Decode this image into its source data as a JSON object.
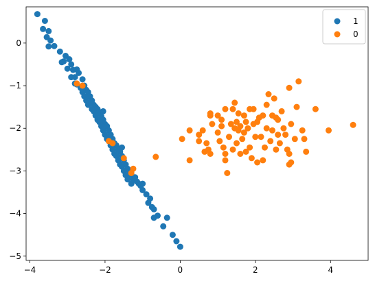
{
  "chart_data": {
    "type": "scatter",
    "title": "",
    "xlabel": "",
    "ylabel": "",
    "xlim": [
      -4.1,
      5.0
    ],
    "ylim": [
      -5.1,
      0.85
    ],
    "xticks": [
      -4,
      -2,
      0,
      2,
      4
    ],
    "yticks": [
      -5,
      -4,
      -3,
      -2,
      -1,
      0
    ],
    "grid": false,
    "legend": {
      "placement": "top-right",
      "entries": [
        "1",
        "0"
      ]
    },
    "series": [
      {
        "name": "1",
        "color": "#1f77b4",
        "points": [
          [
            -3.8,
            0.68
          ],
          [
            -3.6,
            0.52
          ],
          [
            -3.65,
            0.33
          ],
          [
            -3.5,
            0.28
          ],
          [
            -3.55,
            0.14
          ],
          [
            -3.45,
            0.06
          ],
          [
            -3.5,
            -0.08
          ],
          [
            -3.35,
            -0.07
          ],
          [
            -3.2,
            -0.2
          ],
          [
            -3.05,
            -0.3
          ],
          [
            -3.1,
            -0.43
          ],
          [
            -2.95,
            -0.38
          ],
          [
            -3.15,
            -0.45
          ],
          [
            -2.9,
            -0.5
          ],
          [
            -3.0,
            -0.6
          ],
          [
            -2.85,
            -0.63
          ],
          [
            -2.75,
            -0.62
          ],
          [
            -2.7,
            -0.7
          ],
          [
            -2.9,
            -0.8
          ],
          [
            -2.8,
            -0.8
          ],
          [
            -2.6,
            -0.85
          ],
          [
            -2.75,
            -0.97
          ],
          [
            -2.55,
            -1.0
          ],
          [
            -2.65,
            -1.05
          ],
          [
            -2.5,
            -1.1
          ],
          [
            -2.6,
            -1.15
          ],
          [
            -2.45,
            -1.15
          ],
          [
            -2.55,
            -1.25
          ],
          [
            -2.4,
            -1.25
          ],
          [
            -2.5,
            -1.35
          ],
          [
            -2.35,
            -1.35
          ],
          [
            -2.45,
            -1.45
          ],
          [
            -2.3,
            -1.45
          ],
          [
            -2.25,
            -1.5
          ],
          [
            -2.35,
            -1.55
          ],
          [
            -2.2,
            -1.55
          ],
          [
            -2.3,
            -1.6
          ],
          [
            -2.15,
            -1.62
          ],
          [
            -2.25,
            -1.7
          ],
          [
            -2.1,
            -1.72
          ],
          [
            -2.2,
            -1.8
          ],
          [
            -2.05,
            -1.8
          ],
          [
            -2.15,
            -1.85
          ],
          [
            -2.0,
            -1.9
          ],
          [
            -2.1,
            -1.95
          ],
          [
            -1.95,
            -1.95
          ],
          [
            -2.05,
            -2.05
          ],
          [
            -1.9,
            -2.05
          ],
          [
            -2.0,
            -2.15
          ],
          [
            -1.85,
            -2.15
          ],
          [
            -1.95,
            -2.25
          ],
          [
            -1.8,
            -2.25
          ],
          [
            -1.9,
            -2.3
          ],
          [
            -1.75,
            -2.35
          ],
          [
            -1.85,
            -2.4
          ],
          [
            -1.7,
            -2.4
          ],
          [
            -1.8,
            -2.5
          ],
          [
            -1.65,
            -2.5
          ],
          [
            -1.75,
            -2.6
          ],
          [
            -1.6,
            -2.55
          ],
          [
            -1.7,
            -2.65
          ],
          [
            -1.55,
            -2.65
          ],
          [
            -1.65,
            -2.75
          ],
          [
            -1.5,
            -2.75
          ],
          [
            -1.6,
            -2.85
          ],
          [
            -1.45,
            -2.85
          ],
          [
            -1.55,
            -2.9
          ],
          [
            -1.4,
            -2.95
          ],
          [
            -1.5,
            -3.0
          ],
          [
            -1.35,
            -3.05
          ],
          [
            -1.45,
            -3.1
          ],
          [
            -1.3,
            -3.1
          ],
          [
            -1.4,
            -3.2
          ],
          [
            -1.25,
            -3.2
          ],
          [
            -1.3,
            -3.3
          ],
          [
            -1.15,
            -3.25
          ],
          [
            -1.2,
            -3.15
          ],
          [
            -1.1,
            -3.3
          ],
          [
            -1.05,
            -3.35
          ],
          [
            -1.0,
            -3.45
          ],
          [
            -0.9,
            -3.55
          ],
          [
            -0.8,
            -3.65
          ],
          [
            -0.85,
            -3.75
          ],
          [
            -0.75,
            -3.85
          ],
          [
            -0.7,
            -3.9
          ],
          [
            -0.6,
            -4.05
          ],
          [
            -0.7,
            -4.1
          ],
          [
            -0.35,
            -4.1
          ],
          [
            -0.45,
            -4.3
          ],
          [
            -0.2,
            -4.5
          ],
          [
            -0.1,
            -4.65
          ],
          [
            0.0,
            -4.78
          ],
          [
            -2.8,
            -0.95
          ],
          [
            -2.05,
            -1.6
          ],
          [
            -1.55,
            -2.45
          ],
          [
            -1.9,
            -2.2
          ],
          [
            -2.4,
            -1.4
          ],
          [
            -1.0,
            -3.3
          ]
        ]
      },
      {
        "name": "0",
        "color": "#ff7f0e",
        "points": [
          [
            -2.75,
            -0.95
          ],
          [
            -2.6,
            -1.0
          ],
          [
            -1.9,
            -2.3
          ],
          [
            -1.8,
            -2.35
          ],
          [
            -1.5,
            -2.7
          ],
          [
            -1.3,
            -3.05
          ],
          [
            -1.25,
            -2.95
          ],
          [
            -0.65,
            -2.67
          ],
          [
            0.05,
            -2.25
          ],
          [
            0.25,
            -2.75
          ],
          [
            0.25,
            -2.05
          ],
          [
            0.5,
            -2.3
          ],
          [
            0.5,
            -2.15
          ],
          [
            0.6,
            -2.05
          ],
          [
            0.65,
            -2.55
          ],
          [
            0.7,
            -2.35
          ],
          [
            0.75,
            -2.5
          ],
          [
            0.8,
            -1.65
          ],
          [
            0.8,
            -1.7
          ],
          [
            0.8,
            -2.6
          ],
          [
            0.85,
            -1.9
          ],
          [
            1.0,
            -2.1
          ],
          [
            1.0,
            -1.7
          ],
          [
            1.05,
            -2.3
          ],
          [
            1.1,
            -1.95
          ],
          [
            1.15,
            -2.45
          ],
          [
            1.2,
            -2.6
          ],
          [
            1.2,
            -1.55
          ],
          [
            1.2,
            -2.75
          ],
          [
            1.25,
            -3.05
          ],
          [
            1.3,
            -2.2
          ],
          [
            1.35,
            -1.9
          ],
          [
            1.4,
            -2.5
          ],
          [
            1.4,
            -1.55
          ],
          [
            1.45,
            -1.4
          ],
          [
            1.45,
            -2.0
          ],
          [
            1.5,
            -1.85
          ],
          [
            1.5,
            -2.35
          ],
          [
            1.55,
            -1.65
          ],
          [
            1.6,
            -2.6
          ],
          [
            1.6,
            -1.95
          ],
          [
            1.65,
            -2.25
          ],
          [
            1.7,
            -1.7
          ],
          [
            1.7,
            -2.1
          ],
          [
            1.75,
            -2.55
          ],
          [
            1.75,
            -1.85
          ],
          [
            1.8,
            -2.0
          ],
          [
            1.85,
            -1.55
          ],
          [
            1.85,
            -2.45
          ],
          [
            1.9,
            -2.7
          ],
          [
            1.95,
            -1.55
          ],
          [
            1.95,
            -1.9
          ],
          [
            2.0,
            -2.2
          ],
          [
            2.05,
            -1.85
          ],
          [
            2.05,
            -2.8
          ],
          [
            2.1,
            -1.75
          ],
          [
            2.15,
            -2.2
          ],
          [
            2.2,
            -1.7
          ],
          [
            2.25,
            -2.45
          ],
          [
            2.3,
            -2.0
          ],
          [
            2.3,
            -1.45
          ],
          [
            2.35,
            -1.2
          ],
          [
            2.4,
            -2.3
          ],
          [
            2.45,
            -2.05
          ],
          [
            2.45,
            -1.7
          ],
          [
            2.5,
            -1.3
          ],
          [
            2.55,
            -2.5
          ],
          [
            2.55,
            -1.75
          ],
          [
            2.6,
            -2.15
          ],
          [
            2.65,
            -2.35
          ],
          [
            2.7,
            -1.6
          ],
          [
            2.75,
            -2.0
          ],
          [
            2.8,
            -2.15
          ],
          [
            2.85,
            -2.5
          ],
          [
            2.9,
            -2.6
          ],
          [
            2.9,
            -2.85
          ],
          [
            2.95,
            -2.8
          ],
          [
            2.9,
            -1.05
          ],
          [
            2.95,
            -1.9
          ],
          [
            3.05,
            -2.25
          ],
          [
            3.1,
            -1.5
          ],
          [
            3.15,
            -0.9
          ],
          [
            3.25,
            -2.05
          ],
          [
            3.3,
            -2.25
          ],
          [
            3.35,
            -2.55
          ],
          [
            3.6,
            -1.55
          ],
          [
            3.95,
            -2.05
          ],
          [
            4.6,
            -1.92
          ],
          [
            1.1,
            -1.8
          ],
          [
            2.2,
            -2.75
          ],
          [
            1.55,
            -2.05
          ],
          [
            2.6,
            -1.8
          ]
        ]
      }
    ]
  }
}
